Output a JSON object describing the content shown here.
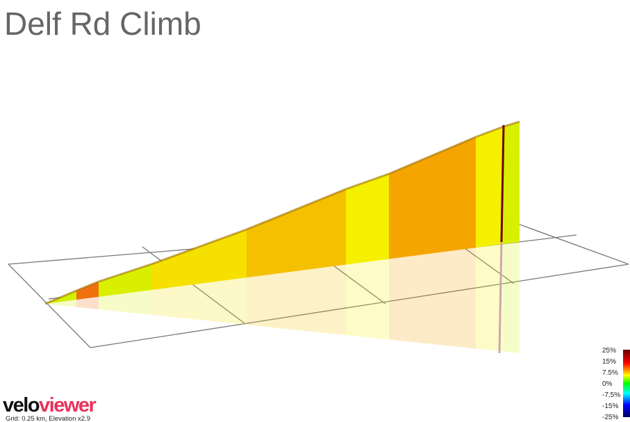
{
  "header": {
    "title": "Delf Rd Climb"
  },
  "legend": {
    "labels": [
      "25%",
      "15%",
      "7.5%",
      "0%",
      "-7.5%",
      "-15%",
      "-25%"
    ]
  },
  "footer": {
    "logo_left": "velo",
    "logo_right": "viewer",
    "caption": "Grid: 0.25 km, Elevation x2.9"
  }
}
